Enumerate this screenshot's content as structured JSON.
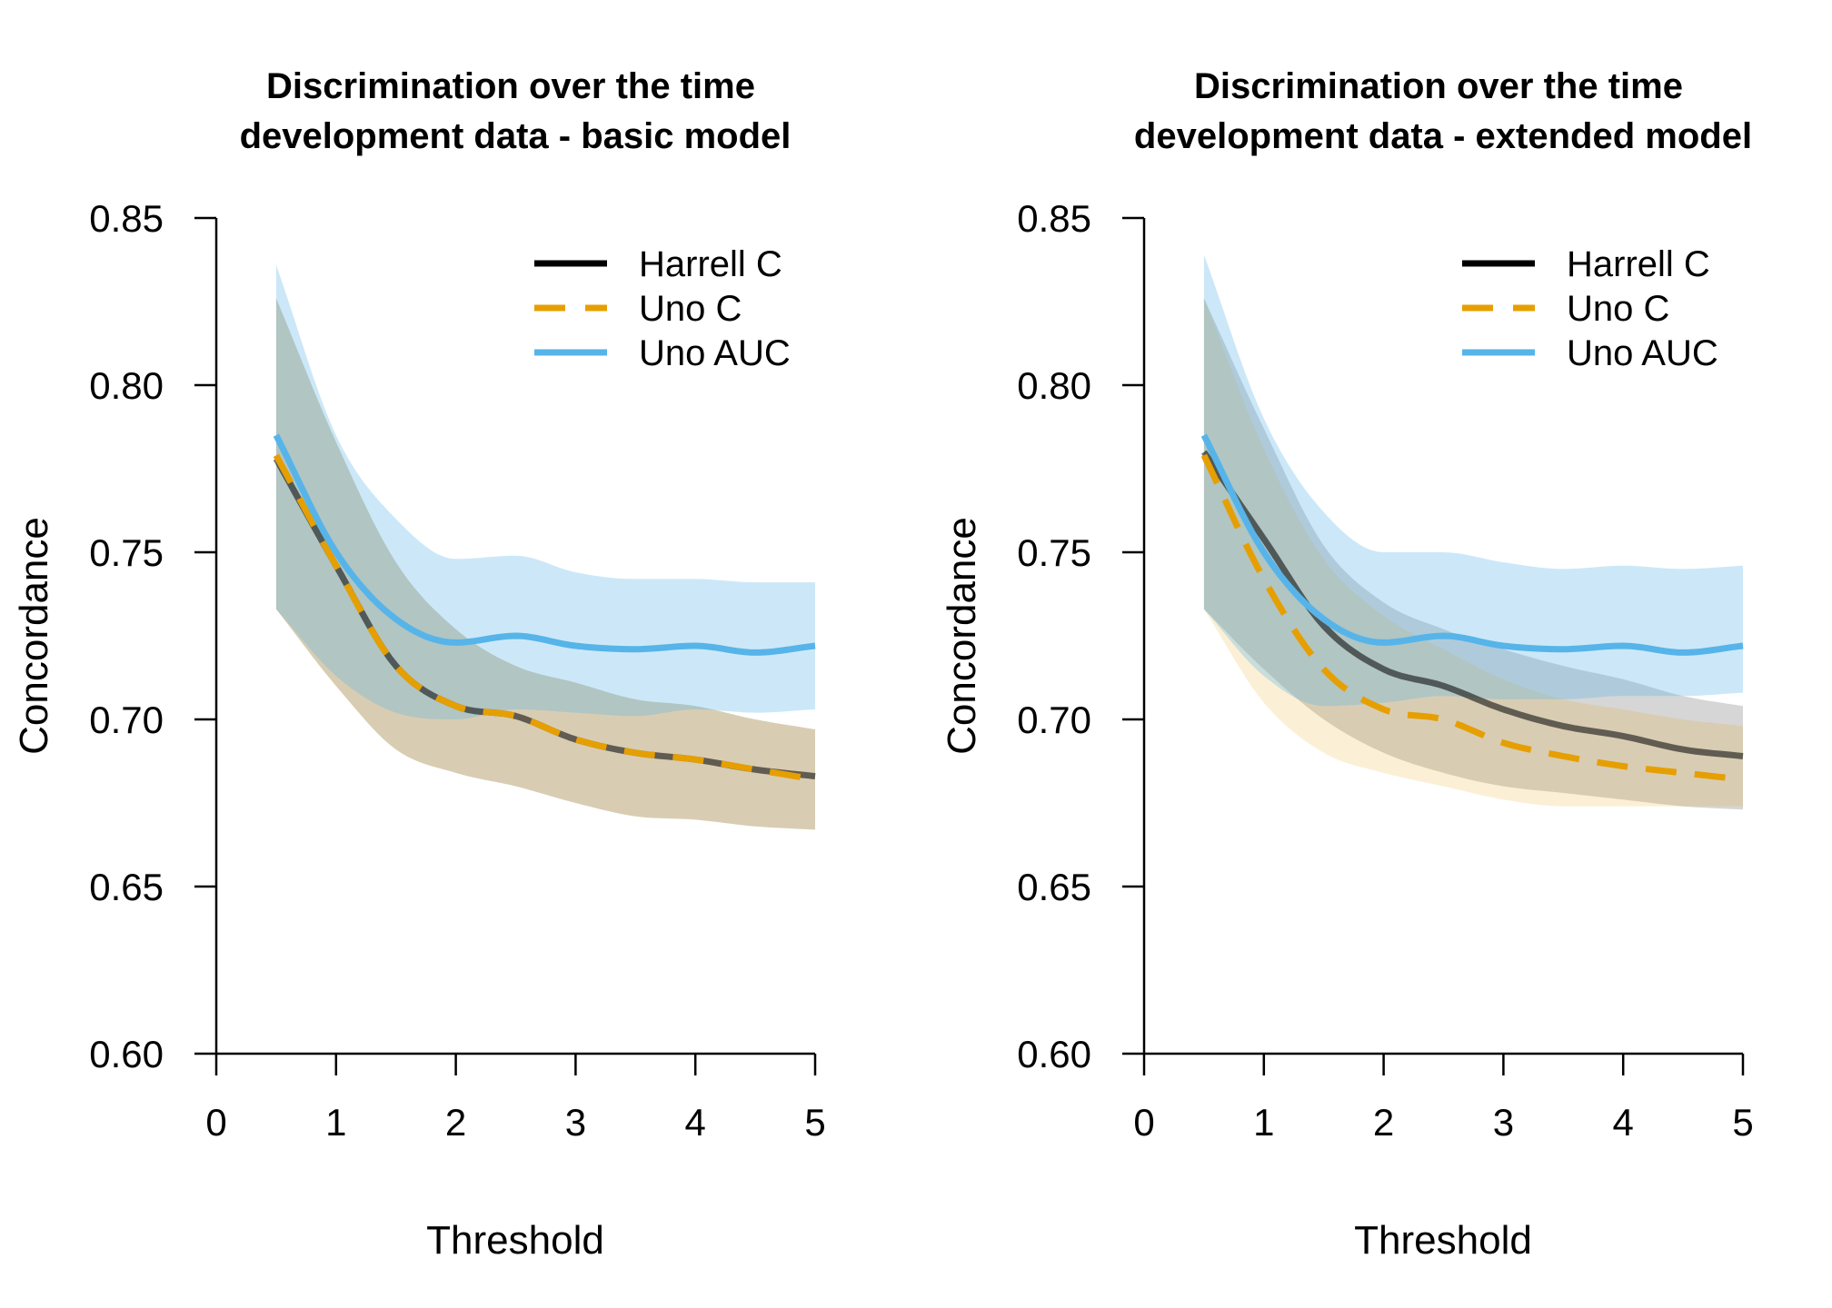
{
  "chart_data": [
    {
      "type": "line",
      "title": "Discrimination over the time\ndevelopment data - basic model",
      "xlabel": "Threshold",
      "ylabel": "Concordance",
      "xlim": [
        0,
        5
      ],
      "ylim": [
        0.6,
        0.85
      ],
      "xticks": [
        "0",
        "1",
        "2",
        "3",
        "4",
        "5"
      ],
      "yticks": [
        "0.60",
        "0.65",
        "0.70",
        "0.75",
        "0.80",
        "0.85"
      ],
      "legend_position": "top-right",
      "x": [
        0.5,
        1.0,
        1.5,
        2.0,
        2.5,
        3.0,
        3.5,
        4.0,
        4.5,
        5.0
      ],
      "series": [
        {
          "name": "Harrell C",
          "color": "#000000",
          "style": "solid",
          "values": [
            0.778,
            0.746,
            0.716,
            0.704,
            0.701,
            0.694,
            0.69,
            0.688,
            0.685,
            0.683
          ],
          "lower": [
            0.733,
            0.71,
            0.691,
            0.684,
            0.68,
            0.675,
            0.671,
            0.67,
            0.668,
            0.667
          ],
          "upper": [
            0.826,
            0.783,
            0.747,
            0.727,
            0.716,
            0.711,
            0.706,
            0.704,
            0.7,
            0.697
          ]
        },
        {
          "name": "Uno C",
          "color": "#E69F00",
          "style": "dashed",
          "values": [
            0.779,
            0.746,
            0.716,
            0.704,
            0.701,
            0.694,
            0.69,
            0.688,
            0.685,
            0.682
          ],
          "lower": [
            0.733,
            0.71,
            0.691,
            0.684,
            0.68,
            0.675,
            0.671,
            0.67,
            0.668,
            0.667
          ],
          "upper": [
            0.826,
            0.783,
            0.747,
            0.727,
            0.716,
            0.711,
            0.706,
            0.704,
            0.7,
            0.697
          ]
        },
        {
          "name": "Uno AUC",
          "color": "#56B4E9",
          "style": "solid",
          "values": [
            0.785,
            0.75,
            0.73,
            0.723,
            0.725,
            0.722,
            0.721,
            0.722,
            0.72,
            0.722
          ],
          "lower": [
            0.733,
            0.713,
            0.702,
            0.7,
            0.703,
            0.702,
            0.701,
            0.703,
            0.702,
            0.703
          ],
          "upper": [
            0.836,
            0.785,
            0.76,
            0.748,
            0.749,
            0.744,
            0.742,
            0.742,
            0.741,
            0.741
          ]
        }
      ]
    },
    {
      "type": "line",
      "title": "Discrimination over the time\ndevelopment data - extended model",
      "xlabel": "Threshold",
      "ylabel": "Concordance",
      "xlim": [
        0,
        5
      ],
      "ylim": [
        0.6,
        0.85
      ],
      "xticks": [
        "0",
        "1",
        "2",
        "3",
        "4",
        "5"
      ],
      "yticks": [
        "0.60",
        "0.65",
        "0.70",
        "0.75",
        "0.80",
        "0.85"
      ],
      "legend_position": "top-right",
      "x": [
        0.5,
        1.0,
        1.5,
        2.0,
        2.5,
        3.0,
        3.5,
        4.0,
        4.5,
        5.0
      ],
      "series": [
        {
          "name": "Harrell C",
          "color": "#000000",
          "style": "solid",
          "values": [
            0.78,
            0.754,
            0.728,
            0.715,
            0.71,
            0.703,
            0.698,
            0.695,
            0.691,
            0.689
          ],
          "lower": [
            0.733,
            0.715,
            0.7,
            0.69,
            0.684,
            0.68,
            0.678,
            0.676,
            0.674,
            0.673
          ],
          "upper": [
            0.826,
            0.787,
            0.752,
            0.735,
            0.727,
            0.721,
            0.716,
            0.712,
            0.707,
            0.704
          ]
        },
        {
          "name": "Uno C",
          "color": "#E69F00",
          "style": "dashed",
          "values": [
            0.779,
            0.742,
            0.715,
            0.703,
            0.7,
            0.693,
            0.689,
            0.686,
            0.684,
            0.682
          ],
          "lower": [
            0.733,
            0.705,
            0.69,
            0.684,
            0.68,
            0.676,
            0.674,
            0.674,
            0.674,
            0.674
          ],
          "upper": [
            0.826,
            0.781,
            0.748,
            0.731,
            0.721,
            0.712,
            0.706,
            0.703,
            0.7,
            0.698
          ]
        },
        {
          "name": "Uno AUC",
          "color": "#56B4E9",
          "style": "solid",
          "values": [
            0.785,
            0.75,
            0.73,
            0.723,
            0.725,
            0.722,
            0.721,
            0.722,
            0.72,
            0.722
          ],
          "lower": [
            0.733,
            0.713,
            0.704,
            0.705,
            0.707,
            0.706,
            0.706,
            0.707,
            0.707,
            0.708
          ],
          "upper": [
            0.839,
            0.79,
            0.762,
            0.75,
            0.75,
            0.747,
            0.745,
            0.746,
            0.745,
            0.746
          ]
        }
      ]
    }
  ]
}
